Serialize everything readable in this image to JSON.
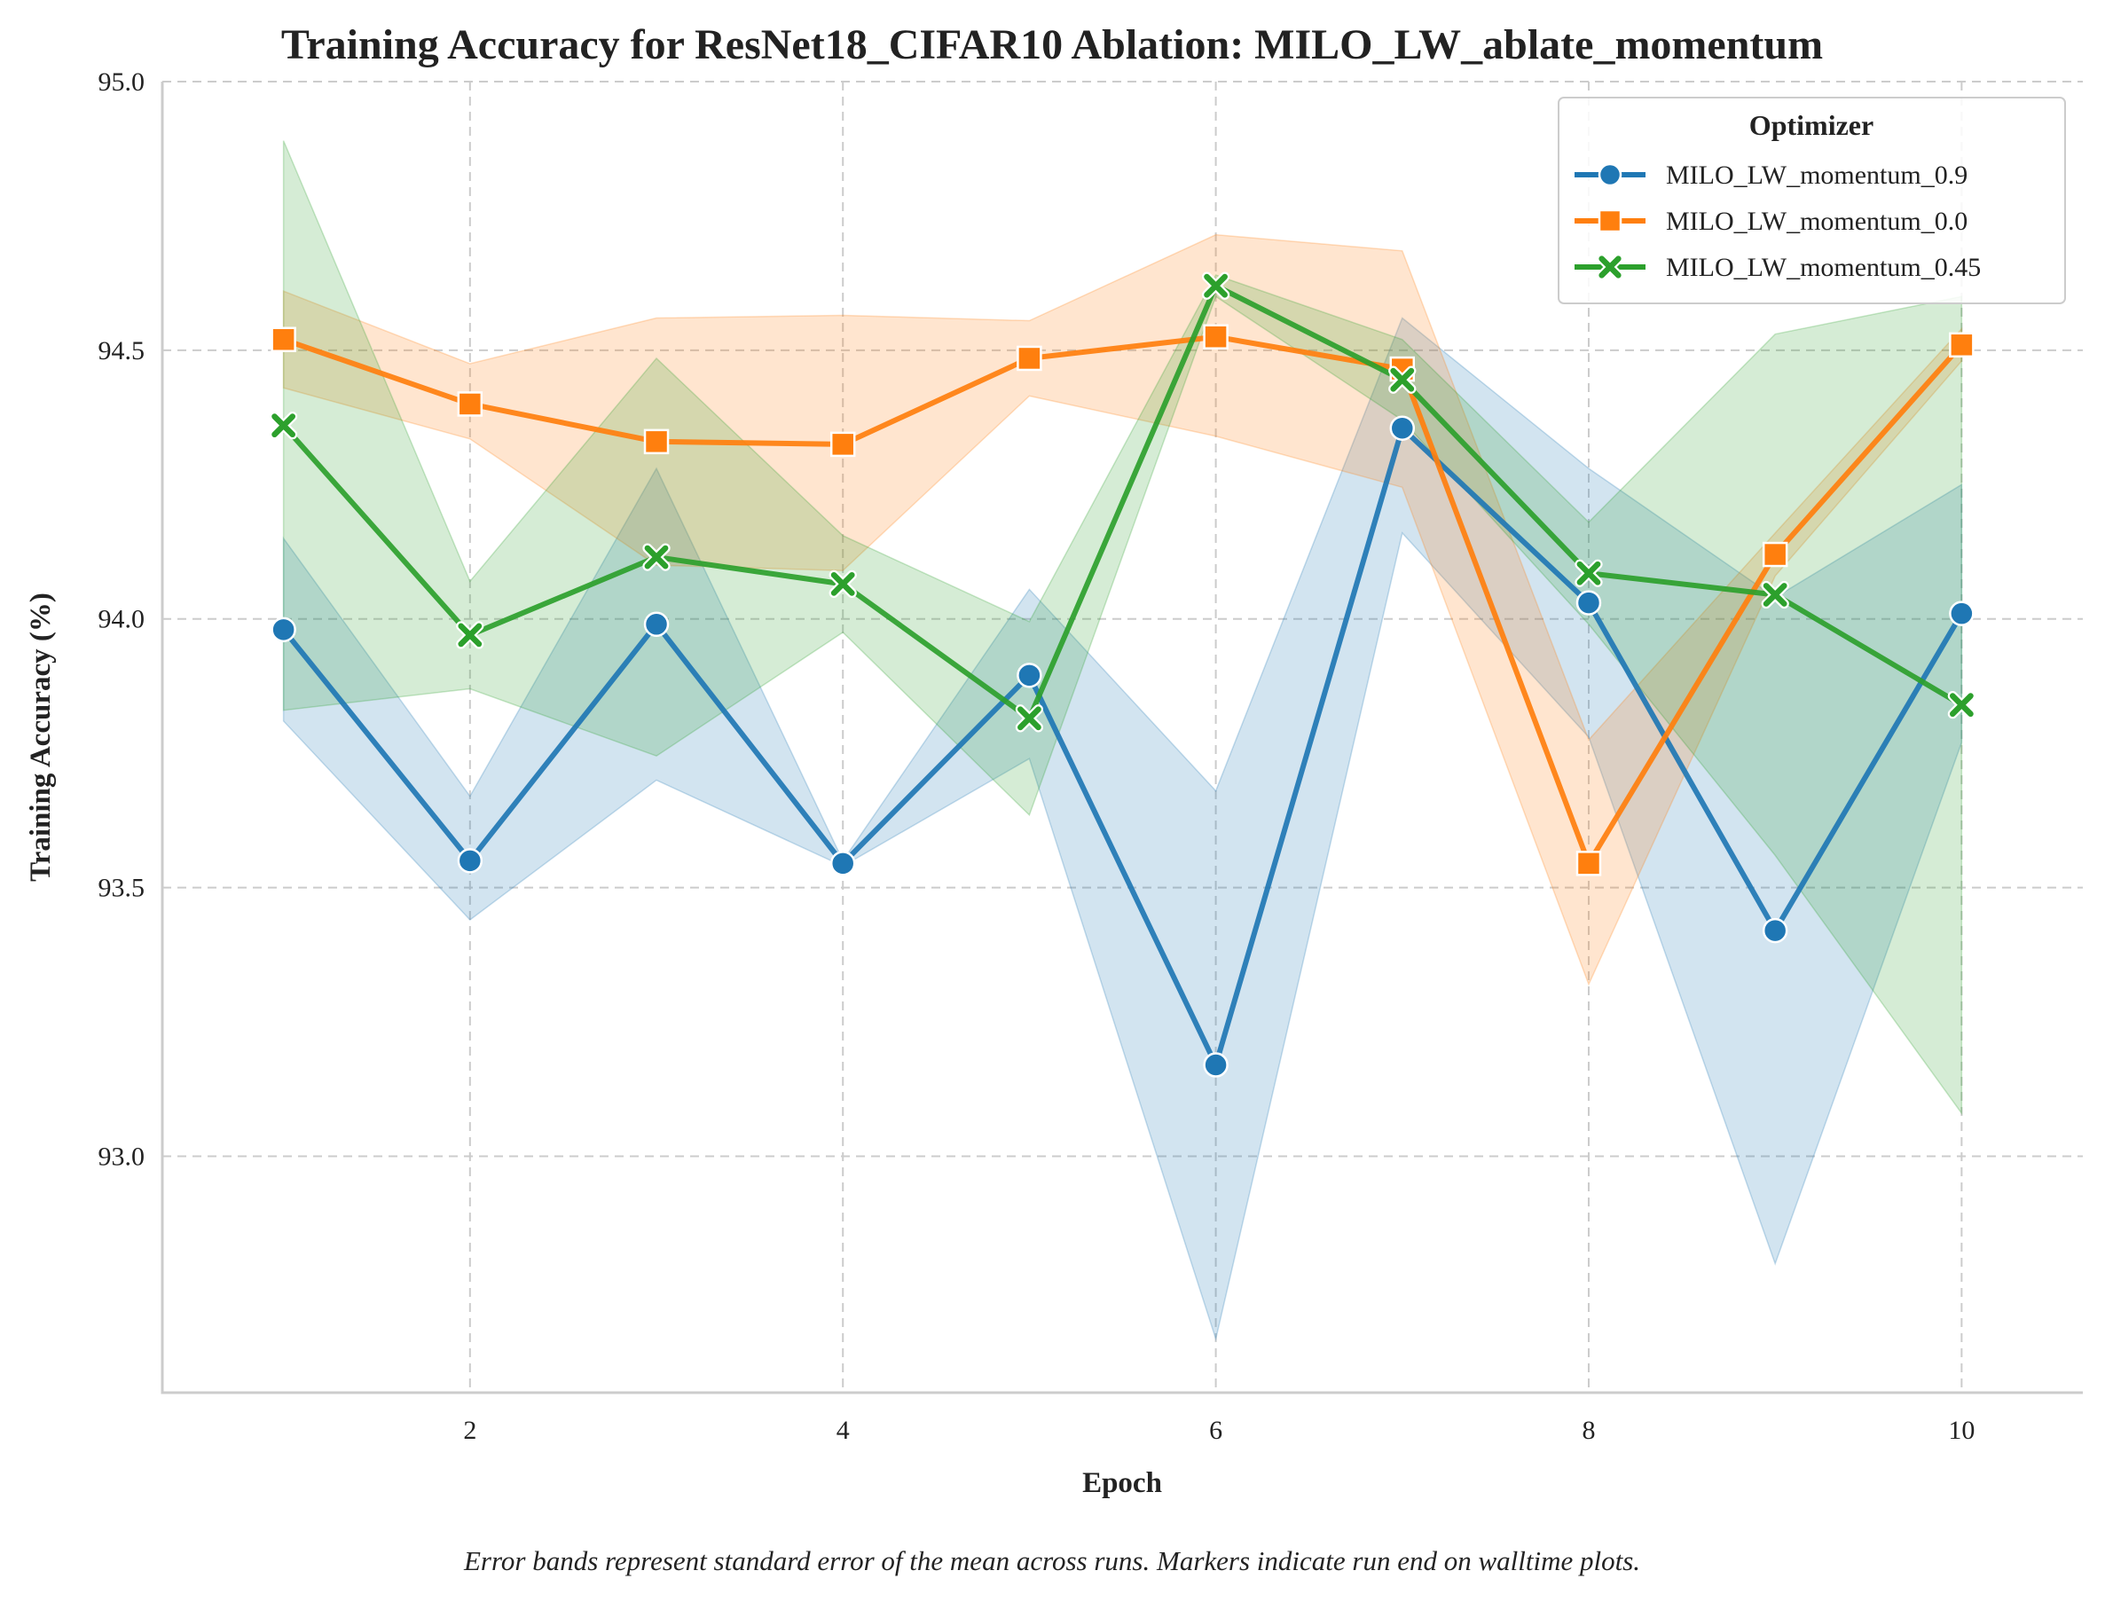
{
  "chart_data": {
    "type": "line",
    "title": "Training Accuracy for ResNet18_CIFAR10 Ablation: MILO_LW_ablate_momentum",
    "xlabel": "Epoch",
    "ylabel": "Training Accuracy (%)",
    "xlim": [
      0.35,
      10.65
    ],
    "ylim": [
      92.56,
      95.0
    ],
    "xticks": [
      2,
      4,
      6,
      8,
      10
    ],
    "yticks": [
      93.0,
      93.5,
      94.0,
      94.5,
      95.0
    ],
    "xtick_labels": [
      "2",
      "4",
      "6",
      "8",
      "10"
    ],
    "ytick_labels": [
      "93.0",
      "93.5",
      "94.0",
      "94.5",
      "95.0"
    ],
    "grid": true,
    "legend": {
      "title": "Optimizer",
      "placement": "top-right"
    },
    "caption": "Error bands represent standard error of the mean across runs. Markers indicate run end on walltime plots.",
    "x": [
      1,
      2,
      3,
      4,
      5,
      6,
      7,
      8,
      9,
      10
    ],
    "series": [
      {
        "name": "MILO_LW_momentum_0.9",
        "color": "#1f77b4",
        "marker": "circle",
        "values": [
          93.98,
          93.55,
          93.99,
          93.545,
          93.895,
          93.17,
          94.355,
          94.03,
          93.42,
          94.01
        ],
        "band_lower": [
          93.81,
          93.44,
          93.7,
          93.54,
          93.74,
          92.66,
          94.16,
          93.78,
          92.8,
          93.77
        ],
        "band_upper": [
          94.15,
          93.67,
          94.28,
          93.55,
          94.055,
          93.68,
          94.56,
          94.28,
          94.04,
          94.25
        ]
      },
      {
        "name": "MILO_LW_momentum_0.0",
        "color": "#ff7f0e",
        "marker": "square",
        "values": [
          94.52,
          94.4,
          94.33,
          94.325,
          94.485,
          94.525,
          94.465,
          93.545,
          94.12,
          94.51
        ],
        "band_lower": [
          94.43,
          94.335,
          94.1,
          94.09,
          94.415,
          94.34,
          94.245,
          93.32,
          94.08,
          94.48
        ],
        "band_upper": [
          94.61,
          94.475,
          94.56,
          94.565,
          94.555,
          94.715,
          94.685,
          93.775,
          94.16,
          94.54
        ]
      },
      {
        "name": "MILO_LW_momentum_0.45",
        "color": "#2ca02c",
        "marker": "x",
        "values": [
          94.36,
          93.97,
          94.115,
          94.065,
          93.815,
          94.62,
          94.445,
          94.085,
          94.045,
          93.84
        ],
        "band_lower": [
          93.83,
          93.87,
          93.745,
          93.975,
          93.635,
          94.6,
          94.37,
          93.99,
          93.56,
          93.08
        ],
        "band_upper": [
          94.89,
          94.07,
          94.485,
          94.155,
          93.995,
          94.64,
          94.52,
          94.18,
          94.53,
          94.6
        ]
      }
    ]
  }
}
